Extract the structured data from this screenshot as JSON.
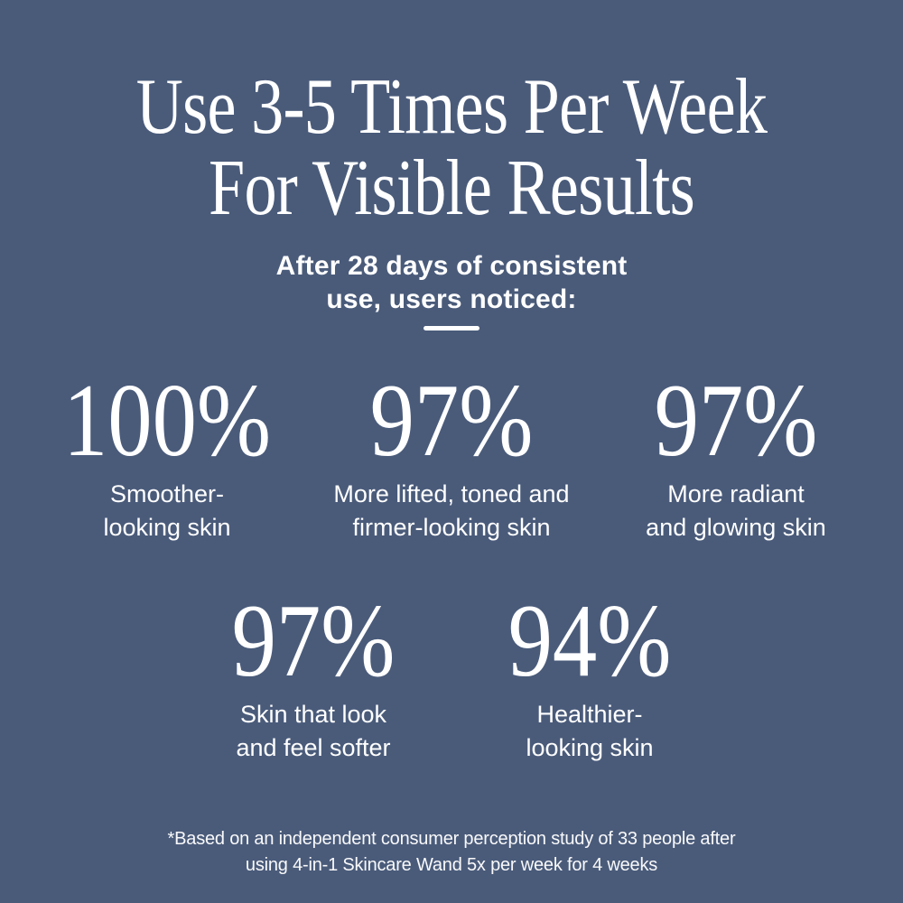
{
  "colors": {
    "background": "#4a5b7a",
    "text": "#ffffff"
  },
  "title": {
    "line1": "Use 3-5 Times Per Week",
    "line2": "For Visible Results"
  },
  "subtitle": {
    "line1": "After 28 days of consistent",
    "line2": "use, users noticed:"
  },
  "stats": {
    "row1": [
      {
        "value": "100%",
        "label_line1": "Smoother-",
        "label_line2": "looking skin"
      },
      {
        "value": "97%",
        "label_line1": "More lifted, toned and",
        "label_line2": "firmer-looking skin"
      },
      {
        "value": "97%",
        "label_line1": "More radiant",
        "label_line2": "and glowing skin"
      }
    ],
    "row2": [
      {
        "value": "97%",
        "label_line1": "Skin that look",
        "label_line2": "and feel softer"
      },
      {
        "value": "94%",
        "label_line1": "Healthier-",
        "label_line2": "looking skin"
      }
    ]
  },
  "footnote": {
    "line1": "*Based on an independent consumer perception study of 33 people after",
    "line2": "using 4-in-1 Skincare Wand 5x per week for 4 weeks"
  }
}
